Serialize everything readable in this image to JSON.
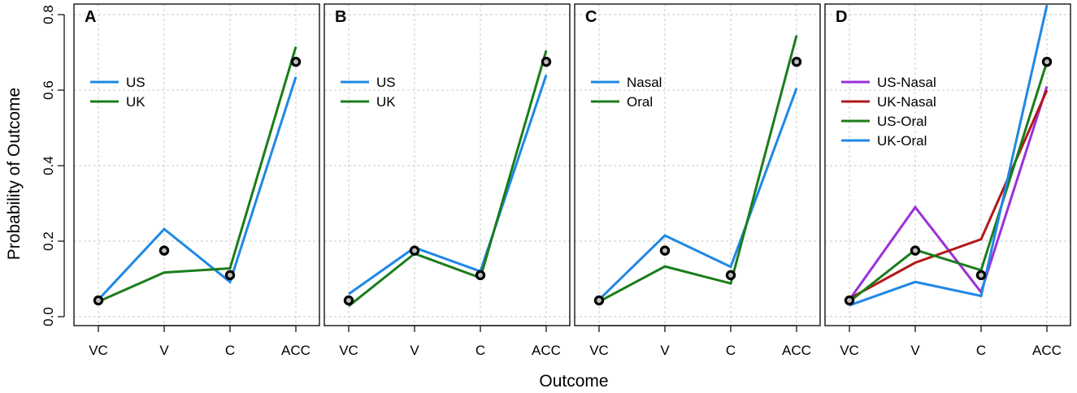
{
  "chart_data": {
    "type": "line",
    "xlabel": "Outcome",
    "ylabel": "Probability of Outcome",
    "categories": [
      "VC",
      "V",
      "C",
      "ACC"
    ],
    "ylim": [
      0,
      0.8
    ],
    "yticks": [
      0.0,
      0.2,
      0.4,
      0.6,
      0.8
    ],
    "ytick_labels": [
      "0.0",
      "0.2",
      "0.4",
      "0.6",
      "0.8"
    ],
    "grid": true,
    "observed": {
      "name": "Observed",
      "values": [
        0.043,
        0.175,
        0.11,
        0.675
      ]
    },
    "colors": {
      "blue": "#1f88e5",
      "green": "#1b7d1b",
      "purple": "#9b30d9",
      "red": "#b01818",
      "point_fill": "#bdbdbd"
    },
    "panels": [
      {
        "label": "A",
        "legend_position": "top-left",
        "series": [
          {
            "name": "US",
            "color": "#1f88e5",
            "values": [
              0.045,
              0.232,
              0.092,
              0.635
            ]
          },
          {
            "name": "UK",
            "color": "#1b7d1b",
            "values": [
              0.04,
              0.117,
              0.128,
              0.715
            ]
          }
        ]
      },
      {
        "label": "B",
        "legend_position": "top-left",
        "series": [
          {
            "name": "US",
            "color": "#1f88e5",
            "values": [
              0.06,
              0.183,
              0.12,
              0.64
            ]
          },
          {
            "name": "UK",
            "color": "#1b7d1b",
            "values": [
              0.028,
              0.167,
              0.103,
              0.705
            ]
          }
        ]
      },
      {
        "label": "C",
        "legend_position": "top-left",
        "series": [
          {
            "name": "Nasal",
            "color": "#1f88e5",
            "values": [
              0.045,
              0.215,
              0.132,
              0.605
            ]
          },
          {
            "name": "Oral",
            "color": "#1b7d1b",
            "values": [
              0.04,
              0.133,
              0.088,
              0.745
            ]
          }
        ]
      },
      {
        "label": "D",
        "legend_position": "top-left",
        "series": [
          {
            "name": "US-Nasal",
            "color": "#9b30d9",
            "values": [
              0.045,
              0.29,
              0.065,
              0.61
            ]
          },
          {
            "name": "UK-Nasal",
            "color": "#b01818",
            "values": [
              0.048,
              0.143,
              0.205,
              0.6
            ]
          },
          {
            "name": "US-Oral",
            "color": "#1b7d1b",
            "values": [
              0.04,
              0.177,
              0.123,
              0.675
            ]
          },
          {
            "name": "UK-Oral",
            "color": "#1f88e5",
            "values": [
              0.03,
              0.092,
              0.055,
              0.825
            ]
          }
        ]
      }
    ]
  }
}
